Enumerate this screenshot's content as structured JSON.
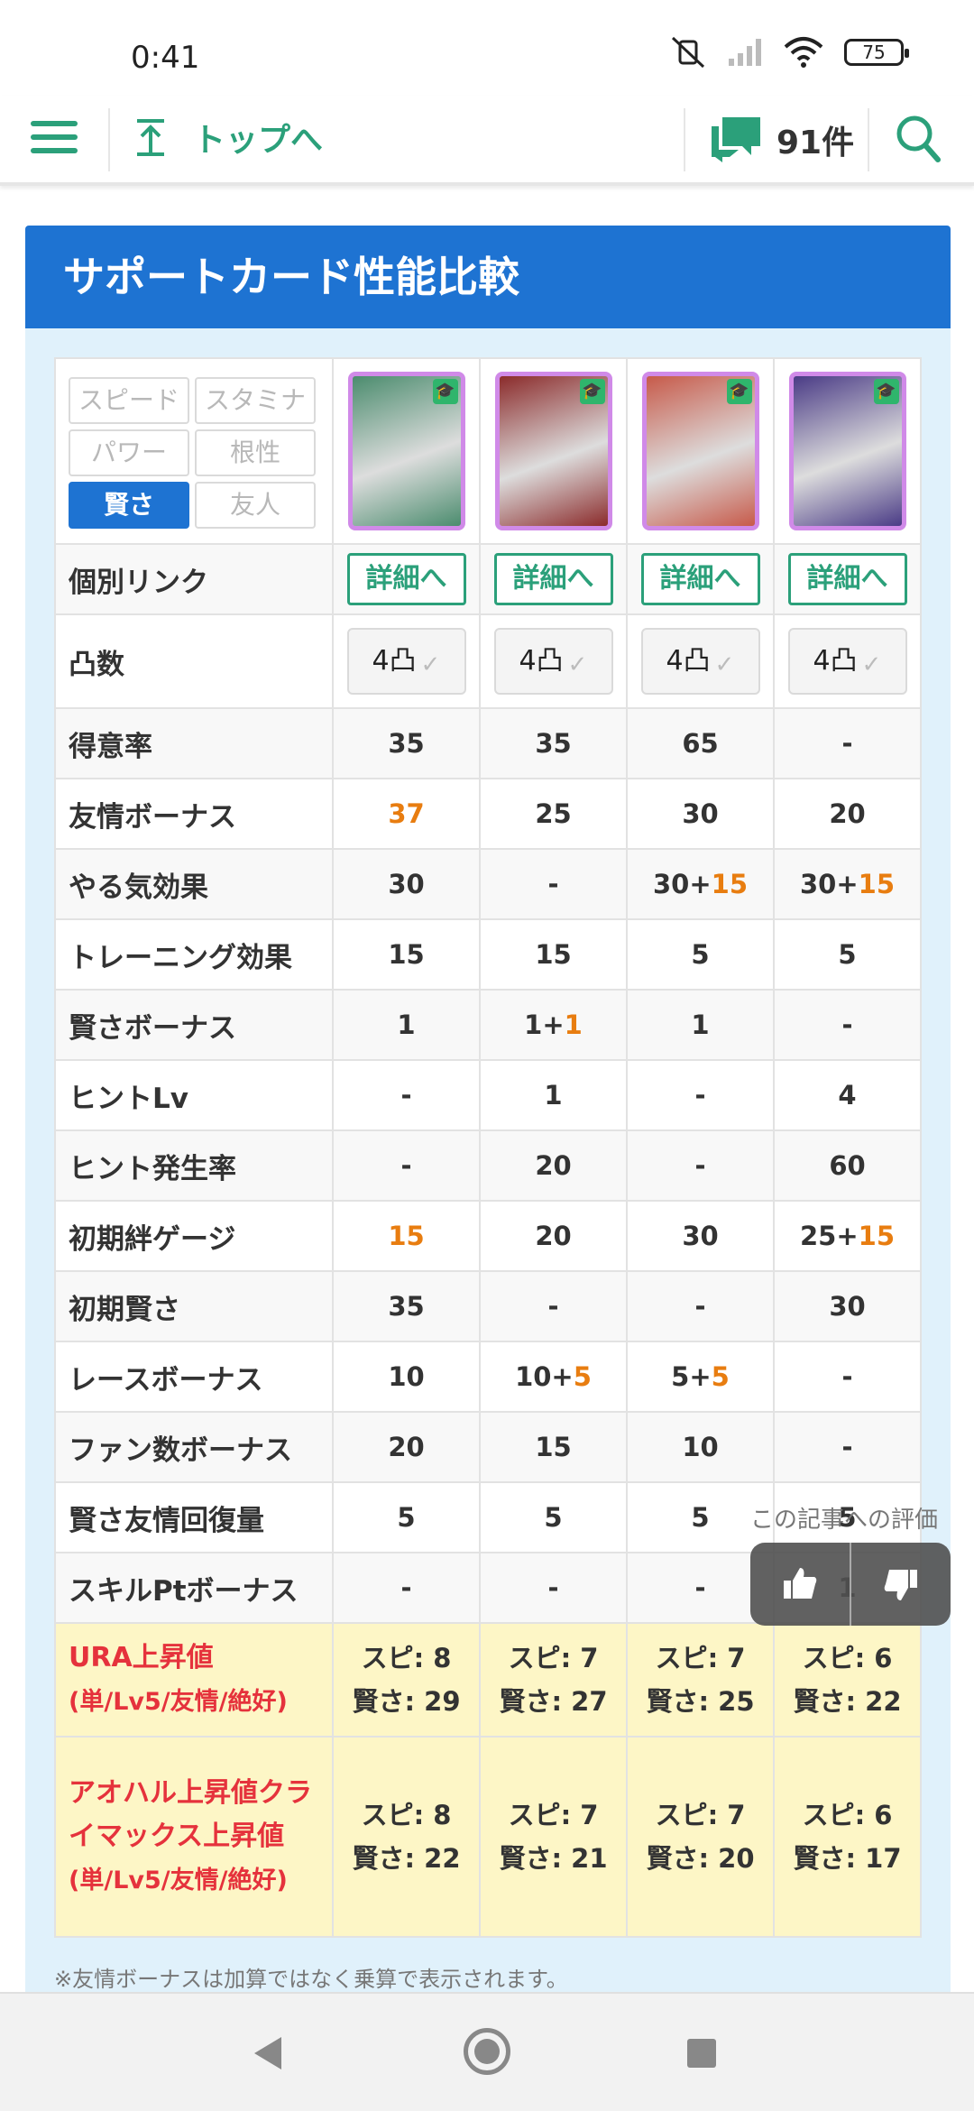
{
  "status": {
    "time": "0:41",
    "battery": "75"
  },
  "nav": {
    "totop_label": "トップへ",
    "comment_count": "91件"
  },
  "article": {
    "title": "サポートカード性能比較",
    "footnote": "※友情ボーナスは加算ではなく乗算で表示されます。"
  },
  "filters": [
    {
      "label": "スピード",
      "active": false
    },
    {
      "label": "スタミナ",
      "active": false
    },
    {
      "label": "パワー",
      "active": false
    },
    {
      "label": "根性",
      "active": false
    },
    {
      "label": "賢さ",
      "active": true
    },
    {
      "label": "友人",
      "active": false
    }
  ],
  "cards": [
    {
      "name": "card-1",
      "frame": "#d08ae8",
      "bg": "#4b8c6e"
    },
    {
      "name": "card-2",
      "frame": "#d08ae8",
      "bg": "#8b2b2b"
    },
    {
      "name": "card-3",
      "frame": "#d08ae8",
      "bg": "#c75a4a"
    },
    {
      "name": "card-4",
      "frame": "#d08ae8",
      "bg": "#4a3b86"
    }
  ],
  "labels": {
    "link": "個別リンク",
    "limit": "凸数",
    "detail": "詳細へ",
    "limit_value": "4凸"
  },
  "rows": [
    {
      "label": "得意率",
      "values": [
        [
          "35"
        ],
        [
          "35"
        ],
        [
          "65"
        ],
        [
          "-"
        ]
      ]
    },
    {
      "label": "友情ボーナス",
      "values": [
        [
          "",
          "37"
        ],
        [
          "25"
        ],
        [
          "30"
        ],
        [
          "20"
        ]
      ]
    },
    {
      "label": "やる気効果",
      "values": [
        [
          "30"
        ],
        [
          "-"
        ],
        [
          "30+",
          "15"
        ],
        [
          "30+",
          "15"
        ]
      ]
    },
    {
      "label": "トレーニング効果",
      "values": [
        [
          "15"
        ],
        [
          "15"
        ],
        [
          "5"
        ],
        [
          "5"
        ]
      ]
    },
    {
      "label": "賢さボーナス",
      "values": [
        [
          "1"
        ],
        [
          "1+",
          "1"
        ],
        [
          "1"
        ],
        [
          "-"
        ]
      ]
    },
    {
      "label": "ヒントLv",
      "values": [
        [
          "-"
        ],
        [
          "1"
        ],
        [
          "-"
        ],
        [
          "4"
        ]
      ]
    },
    {
      "label": "ヒント発生率",
      "values": [
        [
          "-"
        ],
        [
          "20"
        ],
        [
          "-"
        ],
        [
          "60"
        ]
      ]
    },
    {
      "label": "初期絆ゲージ",
      "values": [
        [
          "",
          "15"
        ],
        [
          "20"
        ],
        [
          "30"
        ],
        [
          "25+",
          "15"
        ]
      ]
    },
    {
      "label": "初期賢さ",
      "values": [
        [
          "35"
        ],
        [
          "-"
        ],
        [
          "-"
        ],
        [
          "30"
        ]
      ]
    },
    {
      "label": "レースボーナス",
      "values": [
        [
          "10"
        ],
        [
          "10+",
          "5"
        ],
        [
          "5+",
          "5"
        ],
        [
          "-"
        ]
      ]
    },
    {
      "label": "ファン数ボーナス",
      "values": [
        [
          "20"
        ],
        [
          "15"
        ],
        [
          "10"
        ],
        [
          "-"
        ]
      ]
    },
    {
      "label": "賢さ友情回復量",
      "values": [
        [
          "5"
        ],
        [
          "5"
        ],
        [
          "5"
        ],
        [
          "5"
        ]
      ]
    },
    {
      "label": "スキルPtボーナス",
      "values": [
        [
          "-"
        ],
        [
          "-"
        ],
        [
          "-"
        ],
        [
          "1"
        ]
      ]
    }
  ],
  "ura": {
    "label": "URA上昇値",
    "sub": "(単/Lv5/友情/絶好)",
    "values": [
      [
        "スピ: 8",
        "賢さ: 29"
      ],
      [
        "スピ: 7",
        "賢さ: 27"
      ],
      [
        "スピ: 7",
        "賢さ: 25"
      ],
      [
        "スピ: 6",
        "賢さ: 22"
      ]
    ]
  },
  "aohal": {
    "label": "アオハル上昇値クライマックス上昇値",
    "sub": "(単/Lv5/友情/絶好)",
    "values": [
      [
        "スピ: 8",
        "賢さ: 22"
      ],
      [
        "スピ: 7",
        "賢さ: 21"
      ],
      [
        "スピ: 7",
        "賢さ: 20"
      ],
      [
        "スピ: 6",
        "賢さ: 17"
      ]
    ]
  },
  "rating": {
    "label": "この記事への評価"
  },
  "colors": {
    "accent_green": "#2ba07a",
    "title_blue": "#1e73d2",
    "highlight_orange": "#e87d10",
    "red": "#e5323c"
  }
}
